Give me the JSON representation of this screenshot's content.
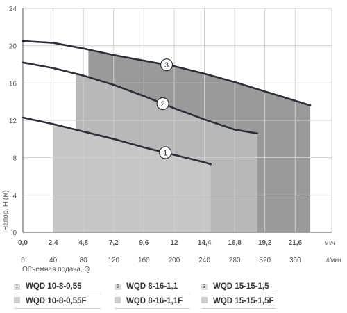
{
  "chart_data": {
    "type": "line",
    "title": "",
    "ylabel": "Напор, Н (м)",
    "xlabel": "Объемная подача, Q",
    "x_unit_top": "м³/ч",
    "x_unit_bottom": "л/мин",
    "ylim": [
      0,
      24
    ],
    "xlim_m3h": [
      0,
      24.5
    ],
    "y_ticks": [
      "0",
      "4",
      "8",
      "12",
      "16",
      "20",
      "24"
    ],
    "x_ticks_m3h": [
      "0,0",
      "2,4",
      "4,8",
      "7,2",
      "9,6",
      "12",
      "14,4",
      "16,8",
      "19,2",
      "21,6"
    ],
    "x_ticks_lmin": [
      "0",
      "40",
      "80",
      "120",
      "160",
      "200",
      "240",
      "280",
      "320",
      "360"
    ],
    "grid": true,
    "series": [
      {
        "tag": "1",
        "x": [
          0,
          2.4,
          4.8,
          7.2,
          9.6,
          12,
          14.4,
          14.9
        ],
        "values": [
          12.3,
          11.6,
          10.8,
          10.0,
          9.1,
          8.3,
          7.5,
          7.3
        ],
        "operating_range": [
          2.4,
          14.9
        ],
        "fill": "#c6c6c6"
      },
      {
        "tag": "2",
        "x": [
          0,
          2.4,
          4.8,
          7.2,
          9.6,
          12,
          14.4,
          16.8,
          18.6
        ],
        "values": [
          18.2,
          17.6,
          16.8,
          15.8,
          14.6,
          13.3,
          12.1,
          11.0,
          10.6
        ],
        "operating_range": [
          4.2,
          18.6
        ],
        "fill": "#b8b8b8"
      },
      {
        "tag": "3",
        "x": [
          0,
          2.4,
          4.8,
          7.2,
          9.6,
          12,
          14.4,
          16.8,
          19.2,
          21.6,
          22.8
        ],
        "values": [
          20.5,
          20.3,
          19.7,
          19.0,
          18.4,
          17.8,
          17.0,
          16.1,
          15.1,
          14.1,
          13.6
        ],
        "operating_range": [
          5.2,
          22.8
        ],
        "fill": "#9a9a9a"
      }
    ]
  },
  "legend": [
    {
      "num": "1",
      "label": "WQD 10-8-0,55"
    },
    {
      "num": "2",
      "label": "WQD 8-16-1,1"
    },
    {
      "num": "3",
      "label": "WQD 15-15-1,5"
    },
    {
      "label": "WQD 10-8-0,55F"
    },
    {
      "label": "WQD 8-16-1,1F"
    },
    {
      "label": "WQD 15-15-1,5F"
    }
  ],
  "colors": {
    "curve": "#2a2f36",
    "grid": "#cfcfcf",
    "axis": "#555555"
  }
}
